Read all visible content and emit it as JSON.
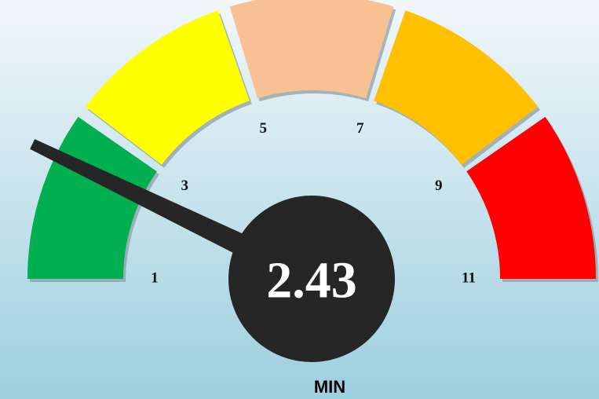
{
  "chart_data": {
    "type": "gauge",
    "value": 2.43,
    "label": "MIN",
    "ylim": [
      1,
      11
    ],
    "yticks": [
      1,
      3,
      5,
      7,
      9,
      11
    ],
    "colors": [
      "#00b050",
      "#ffff00",
      "#f8c194",
      "#ffc000",
      "#ff0000"
    ]
  }
}
